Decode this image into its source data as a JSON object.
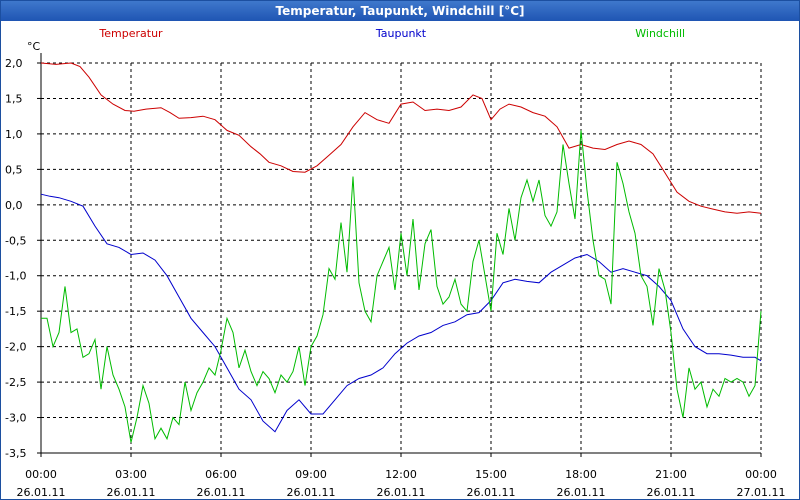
{
  "window": {
    "title": "Temperatur, Taupunkt, Windchill [°C]"
  },
  "chart_data": {
    "type": "line",
    "title": "Temperatur, Taupunkt, Windchill [°C]",
    "ylabel": "°C",
    "xlabel": "",
    "ylim": [
      -3.5,
      2.0
    ],
    "xlim": [
      0,
      24
    ],
    "grid": true,
    "y_ticks": [
      {
        "value": 2.0,
        "label": "2,0"
      },
      {
        "value": 1.5,
        "label": "1,5"
      },
      {
        "value": 1.0,
        "label": "1,0"
      },
      {
        "value": 0.5,
        "label": "0,5"
      },
      {
        "value": 0.0,
        "label": "0,0"
      },
      {
        "value": -0.5,
        "label": "-0,5"
      },
      {
        "value": -1.0,
        "label": "-1,0"
      },
      {
        "value": -1.5,
        "label": "-1,5"
      },
      {
        "value": -2.0,
        "label": "-2,0"
      },
      {
        "value": -2.5,
        "label": "-2,5"
      },
      {
        "value": -3.0,
        "label": "-3,0"
      },
      {
        "value": -3.5,
        "label": "-3,5"
      }
    ],
    "x_ticks": [
      {
        "value": 0,
        "time": "00:00",
        "date": "26.01.11"
      },
      {
        "value": 3,
        "time": "03:00",
        "date": "26.01.11"
      },
      {
        "value": 6,
        "time": "06:00",
        "date": "26.01.11"
      },
      {
        "value": 9,
        "time": "09:00",
        "date": "26.01.11"
      },
      {
        "value": 12,
        "time": "12:00",
        "date": "26.01.11"
      },
      {
        "value": 15,
        "time": "15:00",
        "date": "26.01.11"
      },
      {
        "value": 18,
        "time": "18:00",
        "date": "26.01.11"
      },
      {
        "value": 21,
        "time": "21:00",
        "date": "26.01.11"
      },
      {
        "value": 24,
        "time": "00:00",
        "date": "27.01.11"
      }
    ],
    "series": [
      {
        "name": "Temperatur",
        "color": "#cc0000",
        "x": [
          0,
          0.5,
          1,
          1.3,
          1.6,
          2,
          2.4,
          2.8,
          3.1,
          3.5,
          4,
          4.3,
          4.6,
          5,
          5.4,
          5.8,
          6.2,
          6.6,
          7,
          7.3,
          7.6,
          8,
          8.4,
          8.8,
          9.2,
          9.6,
          10,
          10.4,
          10.8,
          11.2,
          11.6,
          12,
          12.4,
          12.8,
          13.2,
          13.6,
          14,
          14.4,
          14.7,
          15,
          15.3,
          15.6,
          16,
          16.4,
          16.8,
          17.2,
          17.6,
          18,
          18.4,
          18.8,
          19.2,
          19.6,
          20,
          20.4,
          20.8,
          21.2,
          21.6,
          22,
          22.4,
          22.8,
          23.2,
          23.6,
          24
        ],
        "y": [
          2.0,
          1.98,
          2.0,
          1.95,
          1.8,
          1.55,
          1.42,
          1.33,
          1.32,
          1.35,
          1.37,
          1.3,
          1.22,
          1.23,
          1.25,
          1.2,
          1.05,
          0.98,
          0.82,
          0.72,
          0.6,
          0.55,
          0.47,
          0.46,
          0.55,
          0.7,
          0.85,
          1.1,
          1.3,
          1.2,
          1.15,
          1.42,
          1.45,
          1.33,
          1.35,
          1.33,
          1.38,
          1.55,
          1.5,
          1.2,
          1.35,
          1.42,
          1.38,
          1.3,
          1.25,
          1.1,
          0.8,
          0.85,
          0.8,
          0.78,
          0.85,
          0.9,
          0.85,
          0.72,
          0.45,
          0.18,
          0.05,
          -0.02,
          -0.06,
          -0.1,
          -0.12,
          -0.1,
          -0.12
        ]
      },
      {
        "name": "Taupunkt",
        "color": "#0000cc",
        "x": [
          0,
          0.3,
          0.6,
          1,
          1.4,
          1.8,
          2.2,
          2.6,
          3,
          3.4,
          3.8,
          4.2,
          4.6,
          5,
          5.4,
          5.8,
          6.2,
          6.6,
          7,
          7.4,
          7.8,
          8.2,
          8.6,
          9,
          9.4,
          9.8,
          10.2,
          10.6,
          11,
          11.4,
          11.8,
          12.2,
          12.6,
          13,
          13.4,
          13.8,
          14.2,
          14.6,
          15,
          15.4,
          15.8,
          16.2,
          16.6,
          17,
          17.4,
          17.8,
          18.2,
          18.6,
          19,
          19.4,
          19.8,
          20.2,
          20.6,
          21,
          21.4,
          21.8,
          22.2,
          22.6,
          23,
          23.4,
          23.8,
          24
        ],
        "y": [
          0.15,
          0.12,
          0.1,
          0.05,
          -0.02,
          -0.3,
          -0.55,
          -0.6,
          -0.7,
          -0.68,
          -0.78,
          -1.0,
          -1.3,
          -1.6,
          -1.8,
          -2.0,
          -2.3,
          -2.6,
          -2.75,
          -3.05,
          -3.2,
          -2.9,
          -2.75,
          -2.95,
          -2.95,
          -2.75,
          -2.55,
          -2.45,
          -2.4,
          -2.3,
          -2.1,
          -1.95,
          -1.85,
          -1.8,
          -1.7,
          -1.65,
          -1.55,
          -1.52,
          -1.35,
          -1.1,
          -1.05,
          -1.08,
          -1.1,
          -0.95,
          -0.85,
          -0.75,
          -0.7,
          -0.8,
          -0.95,
          -0.9,
          -0.95,
          -1.0,
          -1.15,
          -1.35,
          -1.75,
          -2.0,
          -2.1,
          -2.1,
          -2.12,
          -2.15,
          -2.15,
          -2.2
        ]
      },
      {
        "name": "Windchill",
        "color": "#00bb00",
        "x": [
          0,
          0.2,
          0.4,
          0.6,
          0.8,
          1,
          1.2,
          1.4,
          1.6,
          1.8,
          2,
          2.2,
          2.4,
          2.6,
          2.8,
          3,
          3.2,
          3.4,
          3.6,
          3.8,
          4,
          4.2,
          4.4,
          4.6,
          4.8,
          5,
          5.2,
          5.4,
          5.6,
          5.8,
          6,
          6.2,
          6.4,
          6.6,
          6.8,
          7,
          7.2,
          7.4,
          7.6,
          7.8,
          8,
          8.2,
          8.4,
          8.6,
          8.8,
          9,
          9.2,
          9.4,
          9.6,
          9.8,
          10,
          10.2,
          10.4,
          10.6,
          10.8,
          11,
          11.2,
          11.4,
          11.6,
          11.8,
          12,
          12.2,
          12.4,
          12.6,
          12.8,
          13,
          13.2,
          13.4,
          13.6,
          13.8,
          14,
          14.2,
          14.4,
          14.6,
          14.8,
          15,
          15.2,
          15.4,
          15.6,
          15.8,
          16,
          16.2,
          16.4,
          16.6,
          16.8,
          17,
          17.2,
          17.4,
          17.6,
          17.8,
          18,
          18.2,
          18.4,
          18.6,
          18.8,
          19,
          19.2,
          19.4,
          19.6,
          19.8,
          20,
          20.2,
          20.4,
          20.6,
          20.8,
          21,
          21.2,
          21.4,
          21.6,
          21.8,
          22,
          22.2,
          22.4,
          22.6,
          22.8,
          23,
          23.2,
          23.4,
          23.6,
          23.8,
          24
        ],
        "y": [
          -1.6,
          -1.6,
          -2.0,
          -1.8,
          -1.15,
          -1.8,
          -1.75,
          -2.15,
          -2.1,
          -1.9,
          -2.6,
          -2.0,
          -2.4,
          -2.6,
          -2.85,
          -3.35,
          -3.0,
          -2.55,
          -2.8,
          -3.3,
          -3.15,
          -3.3,
          -3.0,
          -3.1,
          -2.5,
          -2.9,
          -2.65,
          -2.5,
          -2.3,
          -2.4,
          -2.05,
          -1.6,
          -1.8,
          -2.3,
          -2.05,
          -2.35,
          -2.55,
          -2.35,
          -2.45,
          -2.65,
          -2.4,
          -2.5,
          -2.35,
          -2.0,
          -2.55,
          -2.0,
          -1.85,
          -1.55,
          -0.9,
          -1.05,
          -0.25,
          -0.95,
          0.4,
          -1.1,
          -1.5,
          -1.65,
          -1.0,
          -0.8,
          -0.6,
          -1.2,
          -0.4,
          -1.0,
          -0.2,
          -1.2,
          -0.55,
          -0.35,
          -1.15,
          -1.4,
          -1.3,
          -1.05,
          -1.4,
          -1.5,
          -0.8,
          -0.5,
          -1.0,
          -1.5,
          -0.4,
          -0.7,
          -0.05,
          -0.5,
          0.1,
          0.35,
          0.05,
          0.35,
          -0.15,
          -0.3,
          -0.1,
          0.85,
          0.3,
          -0.2,
          1.05,
          0.2,
          -0.5,
          -1.0,
          -1.05,
          -1.4,
          0.6,
          0.3,
          -0.1,
          -0.4,
          -1.0,
          -1.15,
          -1.7,
          -0.9,
          -1.2,
          -1.8,
          -2.6,
          -3.0,
          -2.3,
          -2.6,
          -2.5,
          -2.85,
          -2.6,
          -2.7,
          -2.45,
          -2.5,
          -2.45,
          -2.5,
          -2.7,
          -2.55,
          -1.5
        ]
      }
    ]
  }
}
